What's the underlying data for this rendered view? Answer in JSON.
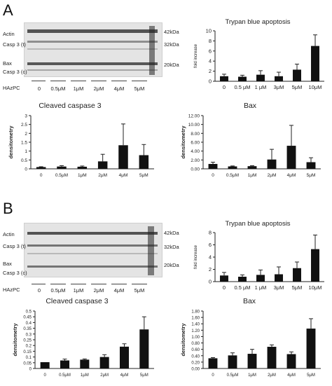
{
  "panels": [
    {
      "letter": "A",
      "blot": {
        "row_labels": [
          "Actin",
          "Casp 3 (t)",
          "Bax",
          "Casp 3 (c)"
        ],
        "kda_labels": [
          "42kDa",
          "32kDa",
          "20kDa"
        ],
        "treatment_label": "HAzPC",
        "lanes": [
          "0",
          "0.5μM",
          "1μM",
          "2μM",
          "4μM",
          "5μM"
        ]
      }
    },
    {
      "letter": "B",
      "blot": {
        "row_labels": [
          "Actin",
          "Casp 3 (t)",
          "Bax",
          "Casp 3 (c)"
        ],
        "kda_labels": [
          "42kDa",
          "32kDa",
          "20kDa"
        ],
        "treatment_label": "HAzPC",
        "lanes": [
          "0",
          "0.5μM",
          "1μM",
          "2μM",
          "4μM",
          "5μM"
        ]
      }
    }
  ],
  "chart_data": [
    {
      "id": "A-trypan",
      "type": "bar",
      "title": "Trypan blue apoptosis",
      "ylabel": "fold increase",
      "categories": [
        "0",
        "0.5 μM",
        "1 μM",
        "3μM",
        "5μM",
        "10μM"
      ],
      "values": [
        1.0,
        0.9,
        1.3,
        1.0,
        2.3,
        7.0
      ],
      "errors": [
        0.4,
        0.3,
        0.8,
        0.8,
        1.1,
        2.2
      ],
      "ylim": [
        0,
        10
      ],
      "yticks": [
        "0",
        "2",
        "4",
        "6",
        "8",
        "10"
      ],
      "ytick_values": [
        0,
        2,
        4,
        6,
        8,
        10
      ]
    },
    {
      "id": "A-cleaved",
      "type": "bar",
      "title": "Cleaved caspase 3",
      "ylabel": "densitometry",
      "categories": [
        "0",
        "0.5μM",
        "1μM",
        "2μM",
        "4μM",
        "5μM"
      ],
      "values": [
        0.1,
        0.13,
        0.12,
        0.42,
        1.33,
        0.77
      ],
      "errors": [
        0.02,
        0.05,
        0.04,
        0.4,
        1.2,
        0.6
      ],
      "ylim": [
        0,
        3
      ],
      "yticks": [
        "0",
        "0.5",
        "1",
        "1.5",
        "2",
        "2.5",
        "3"
      ],
      "ytick_values": [
        0,
        0.5,
        1,
        1.5,
        2,
        2.5,
        3
      ]
    },
    {
      "id": "A-bax",
      "type": "bar",
      "title": "Bax",
      "ylabel": "densitometry",
      "categories": [
        "0",
        "0.5μM",
        "1μM",
        "2μM",
        "4μM",
        "5μM"
      ],
      "values": [
        1.1,
        0.55,
        0.6,
        2.1,
        5.2,
        1.5
      ],
      "errors": [
        0.4,
        0.1,
        0.1,
        2.3,
        4.6,
        1.0
      ],
      "ylim": [
        0,
        12
      ],
      "yticks": [
        "0.00",
        "2.00",
        "4.00",
        "6.00",
        "8.00",
        "10.00",
        "12.00"
      ],
      "ytick_values": [
        0,
        2,
        4,
        6,
        8,
        10,
        12
      ]
    },
    {
      "id": "B-trypan",
      "type": "bar",
      "title": "Trypan blue apoptosis",
      "ylabel": "fold increase",
      "categories": [
        "0",
        "0.5 μM",
        "1 μM",
        "3μM",
        "5μM",
        "10μM"
      ],
      "values": [
        1.0,
        0.8,
        1.1,
        1.2,
        2.2,
        5.3
      ],
      "errors": [
        0.5,
        0.3,
        0.8,
        1.2,
        1.0,
        2.3
      ],
      "ylim": [
        0,
        8
      ],
      "yticks": [
        "0",
        "2",
        "4",
        "6",
        "8"
      ],
      "ytick_values": [
        0,
        2,
        4,
        6,
        8
      ]
    },
    {
      "id": "B-cleaved",
      "type": "bar",
      "title": "Cleaved caspase 3",
      "ylabel": "densitometry",
      "categories": [
        "0",
        "0.5μM",
        "1μM",
        "2μM",
        "4μM",
        "5μM"
      ],
      "values": [
        0.055,
        0.07,
        0.077,
        0.1,
        0.19,
        0.34
      ],
      "errors": [
        0.0,
        0.012,
        0.006,
        0.02,
        0.025,
        0.11
      ],
      "ylim": [
        0,
        0.5
      ],
      "yticks": [
        "0",
        "0.05",
        "0.1",
        "0.15",
        "0.2",
        "0.25",
        "0.3",
        "0.35",
        "0.4",
        "0.45",
        "0.5"
      ],
      "ytick_values": [
        0,
        0.05,
        0.1,
        0.15,
        0.2,
        0.25,
        0.3,
        0.35,
        0.4,
        0.45,
        0.5
      ]
    },
    {
      "id": "B-bax",
      "type": "bar",
      "title": "Bax",
      "ylabel": "densitometry",
      "categories": [
        "0",
        "0.5μM",
        "1μM",
        "2μM",
        "4μM",
        "5μM"
      ],
      "values": [
        0.32,
        0.41,
        0.46,
        0.68,
        0.45,
        1.25
      ],
      "errors": [
        0.02,
        0.08,
        0.14,
        0.06,
        0.07,
        0.31
      ],
      "ylim": [
        0,
        1.8
      ],
      "yticks": [
        "0.00",
        "0.20",
        "0.40",
        "0.60",
        "0.80",
        "1.00",
        "1.20",
        "1.40",
        "1.60",
        "1.80"
      ],
      "ytick_values": [
        0,
        0.2,
        0.4,
        0.6,
        0.8,
        1.0,
        1.2,
        1.4,
        1.6,
        1.8
      ]
    }
  ]
}
